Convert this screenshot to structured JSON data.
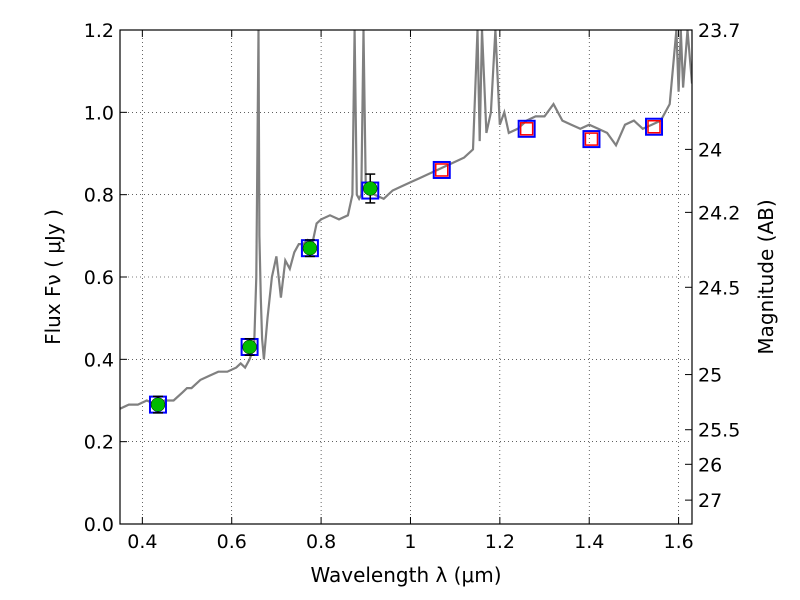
{
  "chart_data": {
    "type": "scatter",
    "xlabel": "Wavelength  λ (μm)",
    "ylabel": "Flux  Fν  ( μJy )",
    "ylabel_right": "Magnitude (AB)",
    "xlim": [
      0.35,
      1.63
    ],
    "ylim": [
      0.0,
      1.2
    ],
    "grid": true,
    "x_ticks": [
      {
        "value": 0.4,
        "label": "0.4"
      },
      {
        "value": 0.6,
        "label": "0.6"
      },
      {
        "value": 0.8,
        "label": "0.8"
      },
      {
        "value": 1.0,
        "label": "1"
      },
      {
        "value": 1.2,
        "label": "1.2"
      },
      {
        "value": 1.4,
        "label": "1.4"
      },
      {
        "value": 1.6,
        "label": "1.6"
      }
    ],
    "y_ticks": [
      {
        "value": 0.0,
        "label": "0.0"
      },
      {
        "value": 0.2,
        "label": "0.2"
      },
      {
        "value": 0.4,
        "label": "0.4"
      },
      {
        "value": 0.6,
        "label": "0.6"
      },
      {
        "value": 0.8,
        "label": "0.8"
      },
      {
        "value": 1.0,
        "label": "1.0"
      },
      {
        "value": 1.2,
        "label": "1.2"
      }
    ],
    "right_ticks": [
      {
        "label": "23.7",
        "flux": 1.2
      },
      {
        "label": "24",
        "flux": 0.91
      },
      {
        "label": "24.2",
        "flux": 0.757
      },
      {
        "label": "24.5",
        "flux": 0.575
      },
      {
        "label": "25",
        "flux": 0.363
      },
      {
        "label": "25.5",
        "flux": 0.229
      },
      {
        "label": "26",
        "flux": 0.145
      },
      {
        "label": "27",
        "flux": 0.058
      }
    ],
    "series": [
      {
        "type": "line",
        "color": "#808080",
        "x": [
          0.35,
          0.37,
          0.39,
          0.41,
          0.43,
          0.45,
          0.47,
          0.49,
          0.5,
          0.51,
          0.53,
          0.55,
          0.57,
          0.59,
          0.61,
          0.62,
          0.63,
          0.64,
          0.65,
          0.655,
          0.66,
          0.662,
          0.665,
          0.668,
          0.672,
          0.68,
          0.69,
          0.7,
          0.71,
          0.72,
          0.73,
          0.74,
          0.75,
          0.76,
          0.77,
          0.78,
          0.79,
          0.8,
          0.82,
          0.84,
          0.86,
          0.87,
          0.875,
          0.88,
          0.885,
          0.89,
          0.895,
          0.9,
          0.92,
          0.94,
          0.96,
          0.98,
          1.0,
          1.02,
          1.04,
          1.06,
          1.08,
          1.1,
          1.12,
          1.14,
          1.15,
          1.155,
          1.16,
          1.17,
          1.18,
          1.19,
          1.2,
          1.21,
          1.22,
          1.24,
          1.26,
          1.28,
          1.3,
          1.32,
          1.34,
          1.36,
          1.38,
          1.4,
          1.42,
          1.44,
          1.46,
          1.48,
          1.5,
          1.52,
          1.54,
          1.56,
          1.58,
          1.595,
          1.6,
          1.605,
          1.61,
          1.62,
          1.63
        ],
        "y": [
          0.28,
          0.29,
          0.29,
          0.3,
          0.29,
          0.3,
          0.3,
          0.32,
          0.33,
          0.33,
          0.35,
          0.36,
          0.37,
          0.37,
          0.38,
          0.39,
          0.38,
          0.4,
          0.43,
          0.6,
          1.2,
          0.7,
          0.55,
          0.45,
          0.4,
          0.5,
          0.6,
          0.65,
          0.55,
          0.64,
          0.62,
          0.66,
          0.68,
          0.68,
          0.69,
          0.68,
          0.73,
          0.74,
          0.75,
          0.74,
          0.75,
          0.8,
          1.2,
          0.8,
          0.79,
          0.8,
          1.2,
          0.81,
          0.8,
          0.79,
          0.81,
          0.82,
          0.83,
          0.84,
          0.85,
          0.86,
          0.87,
          0.88,
          0.89,
          0.91,
          1.2,
          0.93,
          1.2,
          0.95,
          1.0,
          1.2,
          0.97,
          1.0,
          0.95,
          0.96,
          0.98,
          0.99,
          0.99,
          1.02,
          0.98,
          0.97,
          0.96,
          0.97,
          0.96,
          0.95,
          0.92,
          0.97,
          0.98,
          0.96,
          0.97,
          0.98,
          1.02,
          1.2,
          1.05,
          1.2,
          1.06,
          1.2,
          1.07
        ]
      },
      {
        "type": "scatter",
        "marker": "square-open",
        "color": "#0000ff",
        "x": [
          0.435,
          0.64,
          0.775,
          0.91,
          1.07,
          1.26,
          1.405,
          1.545
        ],
        "y": [
          0.29,
          0.43,
          0.67,
          0.81,
          0.86,
          0.96,
          0.935,
          0.965
        ]
      },
      {
        "type": "scatter",
        "marker": "circle-filled",
        "color": "#00bb00",
        "x": [
          0.435,
          0.64,
          0.775,
          0.91
        ],
        "y": [
          0.29,
          0.43,
          0.67,
          0.815
        ],
        "yerr": [
          0.02,
          0.02,
          0.02,
          0.035
        ]
      },
      {
        "type": "scatter",
        "marker": "square-open-small",
        "color": "#ff0000",
        "x": [
          1.07,
          1.26,
          1.405,
          1.545
        ],
        "y": [
          0.86,
          0.96,
          0.935,
          0.965
        ]
      }
    ]
  },
  "colors": {
    "model_line": "#808080",
    "obs_square": "#0000ff",
    "obs_point": "#00bb00",
    "model_square": "#ff0000",
    "error_bar": "#000000"
  }
}
